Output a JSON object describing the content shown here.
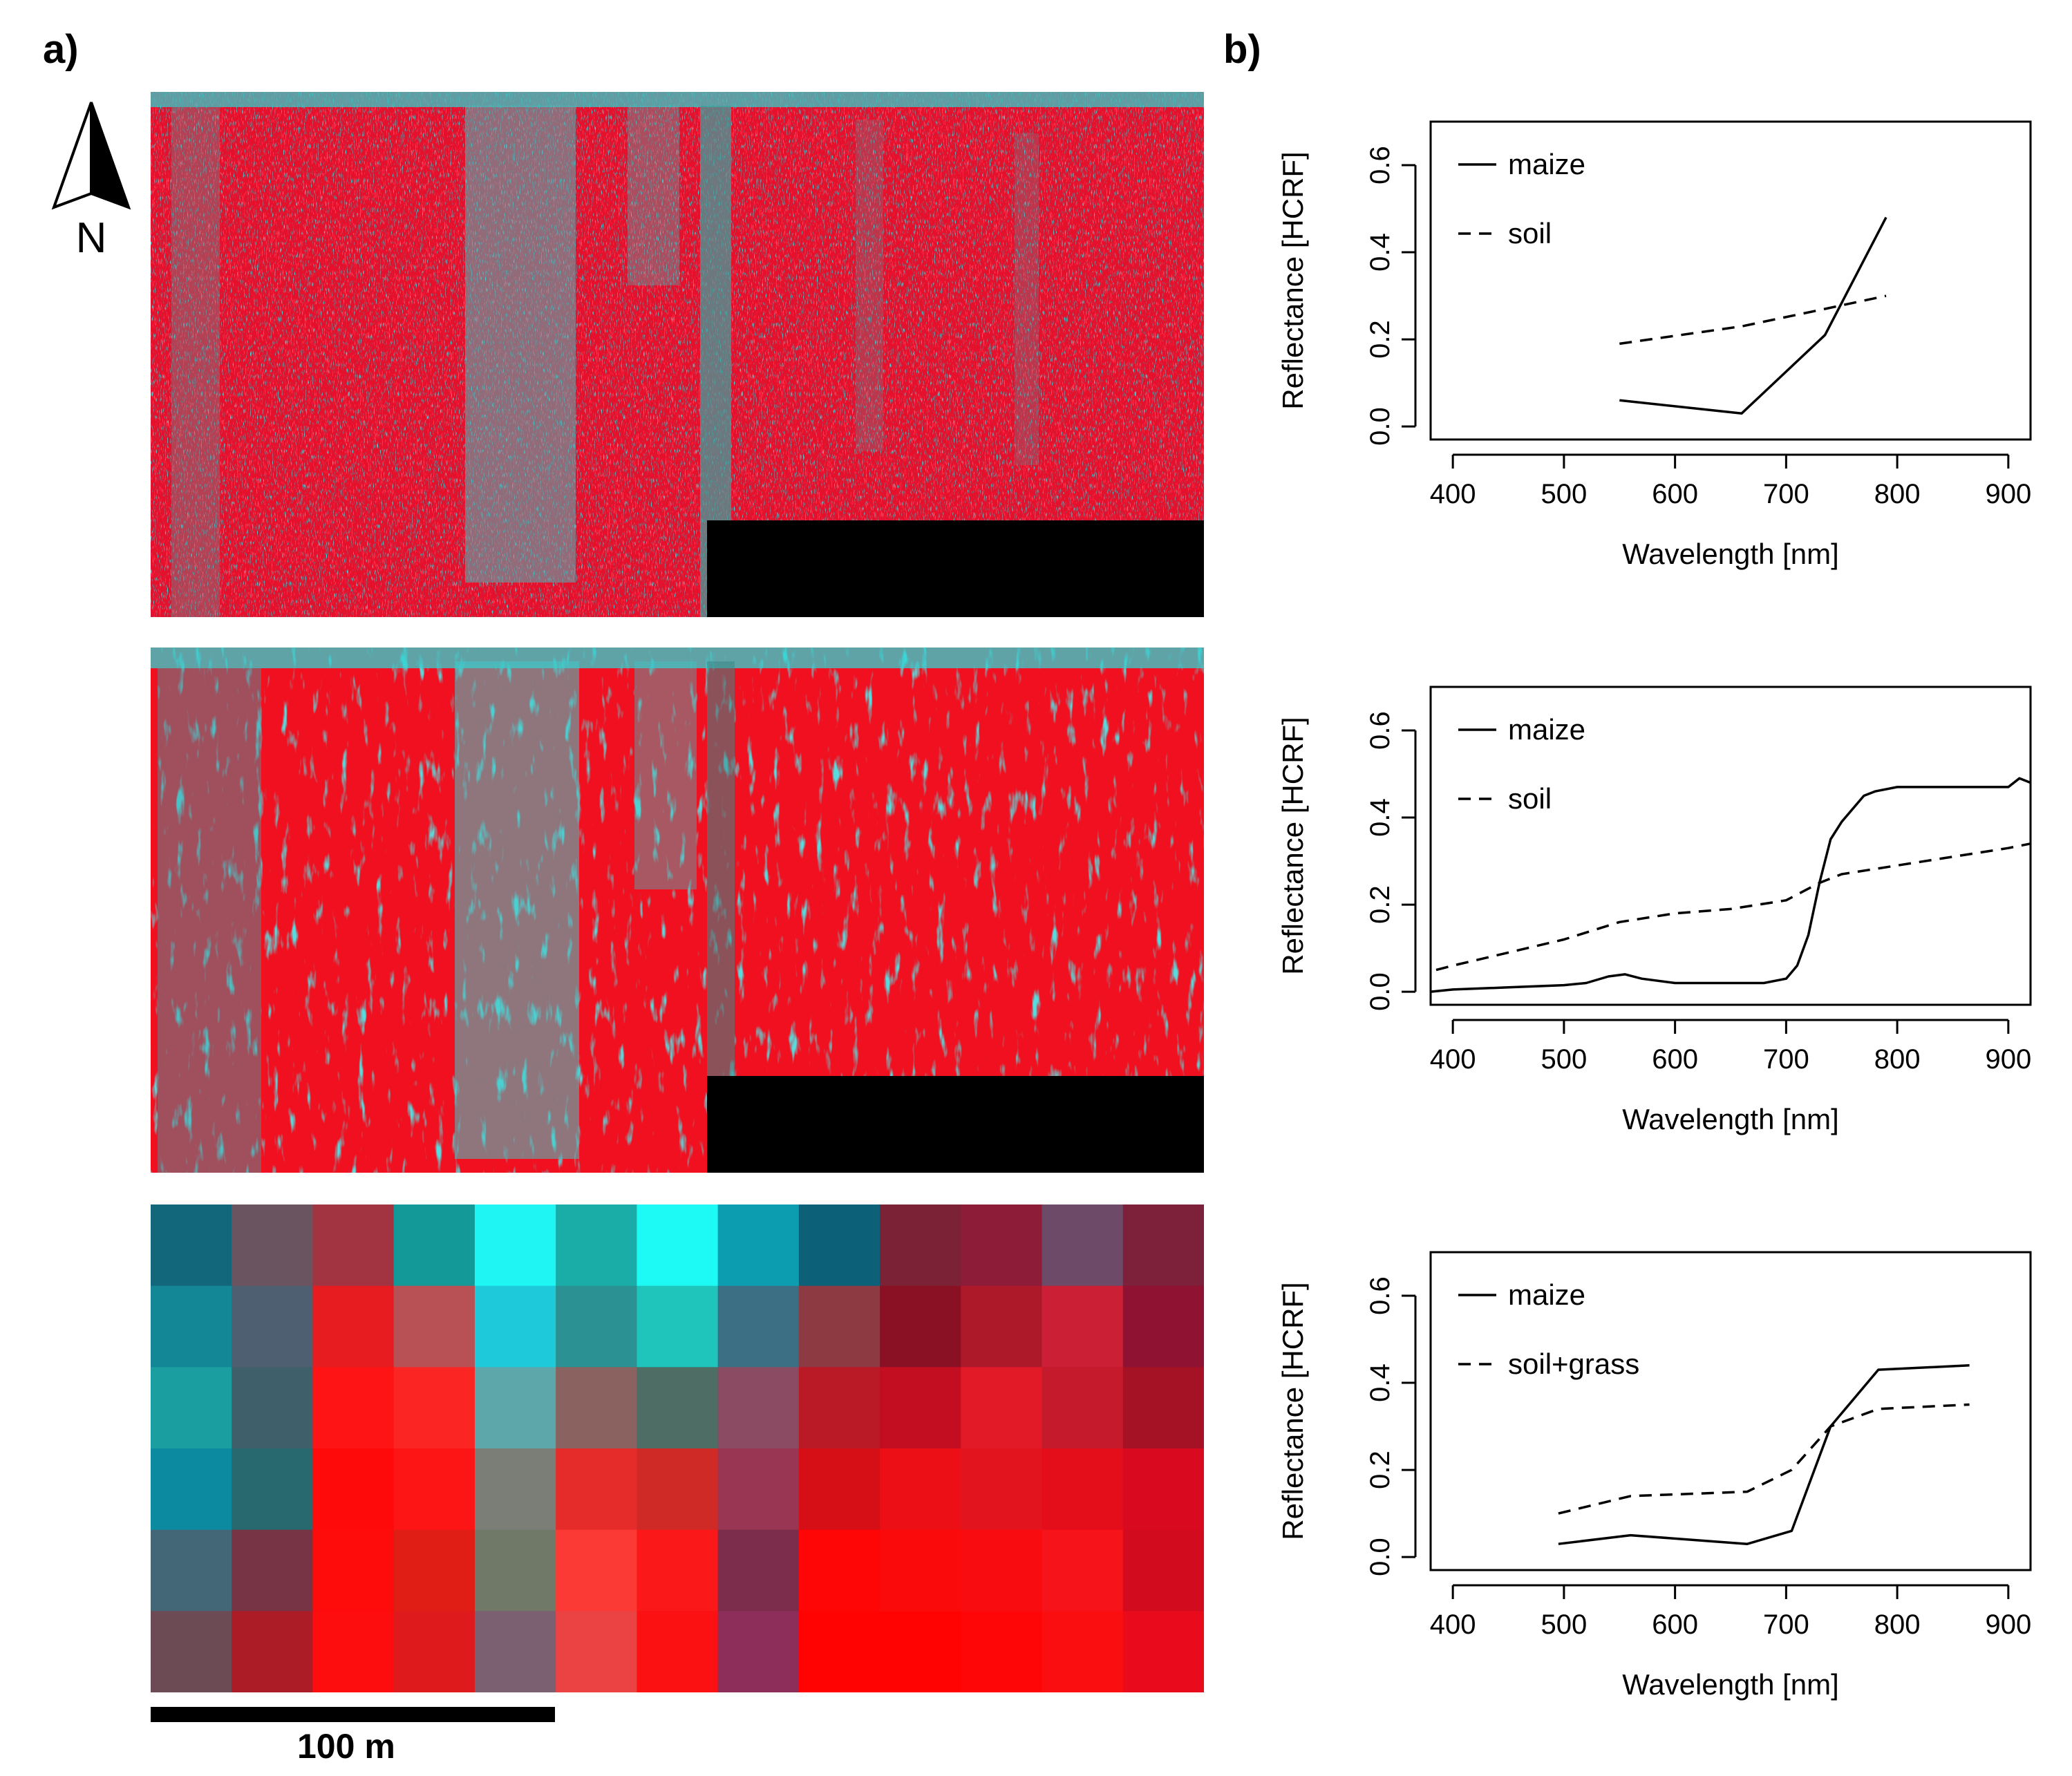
{
  "panels": {
    "a": "a)",
    "b": "b)"
  },
  "north_label": "N",
  "scale_bar_label": "100 m",
  "colors": {
    "vegetation_red": "#e8102a",
    "soil_cyan": "#2fd4d4",
    "line": "#000000"
  },
  "mosaic": {
    "rows": 6,
    "cols": 13,
    "cells": [
      [
        "#13677a",
        "#6a5460",
        "#a13440",
        "#139a98",
        "#1ff6f4",
        "#1aaca7",
        "#1dfaf6",
        "#0d9db0",
        "#0c6178",
        "#7c2237",
        "#8c1c37",
        "#6d4a68",
        "#7c2139"
      ],
      [
        "#138795",
        "#4d5f70",
        "#e61c20",
        "#b85156",
        "#1ecad9",
        "#2b9192",
        "#1fc4ba",
        "#3c6f84",
        "#8e3a43",
        "#8a1124",
        "#ad1929",
        "#ca1f35",
        "#901232"
      ],
      [
        "#1a9ea0",
        "#3f5f6a",
        "#fe1414",
        "#fb2524",
        "#5da6aa",
        "#8a625f",
        "#4e6e65",
        "#8a4b63",
        "#ba1a26",
        "#c20e20",
        "#e21a27",
        "#c51a2b",
        "#a51125"
      ],
      [
        "#0b8aa0",
        "#27696e",
        "#fe0a0a",
        "#fd1414",
        "#7b7e77",
        "#e62b2b",
        "#d02a27",
        "#983653",
        "#d60e15",
        "#ec0f16",
        "#e2151e",
        "#e40e1a",
        "#d90a1f"
      ],
      [
        "#436777",
        "#773444",
        "#fe0b0b",
        "#e01e15",
        "#707868",
        "#fc3a35",
        "#fb1818",
        "#7b2d4b",
        "#fe0606",
        "#fb0a0b",
        "#f80c0f",
        "#f6131a",
        "#d30b1e"
      ],
      [
        "#6d4b55",
        "#ab1c27",
        "#fd0d0d",
        "#df1a1d",
        "#7a6070",
        "#eb4243",
        "#fb1111",
        "#8c2d5a",
        "#ff0303",
        "#ff0303",
        "#fe0607",
        "#fb0e10",
        "#e90a1b"
      ]
    ]
  },
  "chart_data": [
    {
      "type": "line",
      "xlabel": "Wavelength [nm]",
      "ylabel": "Reflectance [HCRF]",
      "xlim": [
        380,
        920
      ],
      "ylim": [
        -0.03,
        0.7
      ],
      "x_ticks": [
        400,
        500,
        600,
        700,
        800,
        900
      ],
      "y_ticks": [
        0.0,
        0.2,
        0.4,
        0.6
      ],
      "x_tick_labels": [
        "400",
        "500",
        "600",
        "700",
        "800",
        "900"
      ],
      "y_tick_labels": [
        "0.0",
        "0.2",
        "0.4",
        "0.6"
      ],
      "legend": {
        "position": "top-left",
        "entries": [
          "maize",
          "soil"
        ]
      },
      "series": [
        {
          "name": "maize",
          "dash": "solid",
          "x": [
            550,
            660,
            735,
            790
          ],
          "y": [
            0.06,
            0.03,
            0.21,
            0.48
          ]
        },
        {
          "name": "soil",
          "dash": "dashed",
          "x": [
            550,
            660,
            735,
            790
          ],
          "y": [
            0.19,
            0.23,
            0.27,
            0.3
          ]
        }
      ]
    },
    {
      "type": "line",
      "xlabel": "Wavelength [nm]",
      "ylabel": "Reflectance [HCRF]",
      "xlim": [
        380,
        920
      ],
      "ylim": [
        -0.03,
        0.7
      ],
      "x_ticks": [
        400,
        500,
        600,
        700,
        800,
        900
      ],
      "y_ticks": [
        0.0,
        0.2,
        0.4,
        0.6
      ],
      "x_tick_labels": [
        "400",
        "500",
        "600",
        "700",
        "800",
        "900"
      ],
      "y_tick_labels": [
        "0.0",
        "0.2",
        "0.4",
        "0.6"
      ],
      "legend": {
        "position": "top-left",
        "entries": [
          "maize",
          "soil"
        ]
      },
      "series": [
        {
          "name": "maize",
          "dash": "solid",
          "x": [
            380,
            400,
            450,
            500,
            520,
            540,
            555,
            570,
            600,
            650,
            680,
            700,
            710,
            720,
            730,
            740,
            750,
            760,
            770,
            780,
            800,
            850,
            900,
            910,
            920
          ],
          "y": [
            0.0,
            0.005,
            0.01,
            0.015,
            0.02,
            0.035,
            0.04,
            0.03,
            0.02,
            0.02,
            0.02,
            0.03,
            0.06,
            0.13,
            0.25,
            0.35,
            0.39,
            0.42,
            0.45,
            0.46,
            0.47,
            0.47,
            0.47,
            0.49,
            0.48
          ]
        },
        {
          "name": "soil",
          "dash": "dashed",
          "x": [
            385,
            400,
            450,
            500,
            550,
            600,
            650,
            700,
            730,
            750,
            800,
            850,
            900,
            920
          ],
          "y": [
            0.05,
            0.06,
            0.09,
            0.12,
            0.16,
            0.18,
            0.19,
            0.21,
            0.25,
            0.27,
            0.29,
            0.31,
            0.33,
            0.34
          ]
        }
      ]
    },
    {
      "type": "line",
      "xlabel": "Wavelength [nm]",
      "ylabel": "Reflectance [HCRF]",
      "xlim": [
        380,
        920
      ],
      "ylim": [
        -0.03,
        0.7
      ],
      "x_ticks": [
        400,
        500,
        600,
        700,
        800,
        900
      ],
      "y_ticks": [
        0.0,
        0.2,
        0.4,
        0.6
      ],
      "x_tick_labels": [
        "400",
        "500",
        "600",
        "700",
        "800",
        "900"
      ],
      "y_tick_labels": [
        "0.0",
        "0.2",
        "0.4",
        "0.6"
      ],
      "legend": {
        "position": "top-left",
        "entries": [
          "maize",
          "soil+grass"
        ]
      },
      "series": [
        {
          "name": "maize",
          "dash": "solid",
          "x": [
            495,
            560,
            665,
            705,
            740,
            783,
            865
          ],
          "y": [
            0.03,
            0.05,
            0.03,
            0.06,
            0.3,
            0.43,
            0.44
          ]
        },
        {
          "name": "soil+grass",
          "dash": "dashed",
          "x": [
            495,
            560,
            665,
            705,
            740,
            783,
            865
          ],
          "y": [
            0.1,
            0.14,
            0.15,
            0.2,
            0.3,
            0.34,
            0.35
          ]
        }
      ]
    }
  ]
}
